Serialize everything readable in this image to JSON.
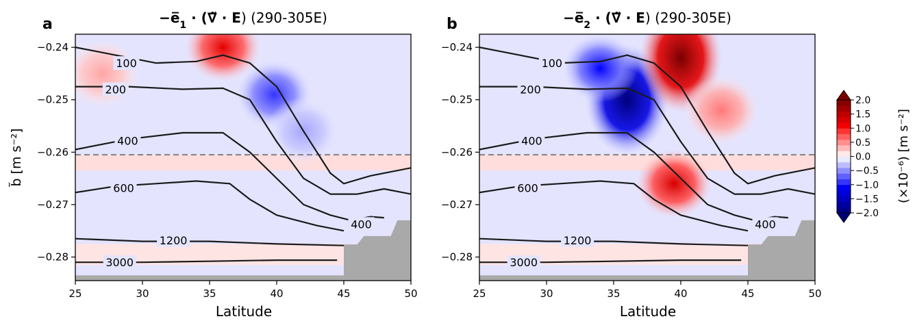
{
  "figure": {
    "shared_xlabel": "Latitude",
    "shared_ylabel": "b̃ [m s⁻²]",
    "colorbar_label": "(×10⁻⁶) [m s⁻²]"
  },
  "colors": {
    "contour": "#1a1a1a",
    "dashed_line": "#808080",
    "land": "#a9a9a9",
    "positive_strong": "#7a0000",
    "negative_strong": "#00007a"
  },
  "chart_data": [
    {
      "type": "heatmap",
      "panel_letter": "a",
      "title_parts": [
        "−",
        "e̅",
        "1",
        " · (",
        "∇̃",
        " · ",
        "E",
        ") (290-305E)"
      ],
      "xlabel": "Latitude",
      "ylabel": "b̃ [m s⁻²]",
      "xlim": [
        25,
        50
      ],
      "ylim": [
        -0.2845,
        -0.2375
      ],
      "xticks": [
        25,
        30,
        35,
        40,
        45,
        50
      ],
      "yticks": [
        -0.24,
        -0.25,
        -0.26,
        -0.27,
        -0.28
      ],
      "ytick_labels": [
        "−0.24",
        "−0.25",
        "−0.26",
        "−0.27",
        "−0.28"
      ],
      "dashed_reference_y": -0.2605,
      "color_scale": {
        "min": -2.0,
        "max": 2.0,
        "colormap": "seismic"
      },
      "features": [
        {
          "kind": "positive_max",
          "x": 36,
          "y": -0.24,
          "value": 1.2
        },
        {
          "kind": "positive",
          "x": 27,
          "y": -0.245,
          "value": 0.4
        },
        {
          "kind": "negative_min",
          "x": 39.8,
          "y": -0.249,
          "value": -0.9
        },
        {
          "kind": "negative",
          "x": 42,
          "y": -0.256,
          "value": -0.4
        }
      ],
      "contours": [
        {
          "label": "100",
          "points": [
            [
              25,
              -0.24
            ],
            [
              28,
              -0.2415
            ],
            [
              31,
              -0.243
            ],
            [
              34,
              -0.2427
            ],
            [
              36,
              -0.2415
            ],
            [
              38,
              -0.243
            ],
            [
              40,
              -0.2475
            ],
            [
              42,
              -0.256
            ],
            [
              44,
              -0.264
            ],
            [
              45,
              -0.266
            ],
            [
              47,
              -0.2645
            ],
            [
              50,
              -0.263
            ]
          ]
        },
        {
          "label": "200",
          "points": [
            [
              25,
              -0.2475
            ],
            [
              29,
              -0.2475
            ],
            [
              33,
              -0.248
            ],
            [
              36,
              -0.2478
            ],
            [
              38,
              -0.25
            ],
            [
              40,
              -0.258
            ],
            [
              42,
              -0.265
            ],
            [
              44,
              -0.268
            ],
            [
              46,
              -0.268
            ],
            [
              48,
              -0.267
            ],
            [
              50,
              -0.268
            ]
          ]
        },
        {
          "label": "400",
          "points": [
            [
              25,
              -0.2595
            ],
            [
              29,
              -0.2575
            ],
            [
              33,
              -0.2563
            ],
            [
              36,
              -0.2563
            ],
            [
              38,
              -0.26
            ],
            [
              40,
              -0.265
            ],
            [
              42,
              -0.27
            ],
            [
              44,
              -0.272
            ],
            [
              45.5,
              -0.273
            ],
            [
              47,
              -0.2723
            ],
            [
              48,
              -0.2725
            ]
          ]
        },
        {
          "label": "600",
          "points": [
            [
              25,
              -0.2677
            ],
            [
              28,
              -0.2665
            ],
            [
              31,
              -0.266
            ],
            [
              34,
              -0.2655
            ],
            [
              36.5,
              -0.266
            ],
            [
              38,
              -0.269
            ],
            [
              40,
              -0.272
            ],
            [
              43,
              -0.274
            ],
            [
              45,
              -0.275
            ]
          ]
        },
        {
          "label": "1200",
          "points": [
            [
              25,
              -0.2765
            ],
            [
              30,
              -0.277
            ],
            [
              35,
              -0.277
            ],
            [
              40,
              -0.2775
            ],
            [
              45,
              -0.2778
            ]
          ]
        },
        {
          "label": "3000",
          "points": [
            [
              25,
              -0.281
            ],
            [
              30,
              -0.281
            ],
            [
              35,
              -0.2808
            ],
            [
              40,
              -0.2806
            ],
            [
              44.5,
              -0.2806
            ]
          ]
        }
      ],
      "inline_labels": [
        {
          "text": "100",
          "x": 28.8,
          "y": -0.243
        },
        {
          "text": "200",
          "x": 28.0,
          "y": -0.248
        },
        {
          "text": "400",
          "x": 28.9,
          "y": -0.2578
        },
        {
          "text": "600",
          "x": 28.6,
          "y": -0.2668
        },
        {
          "text": "400",
          "x": 46.3,
          "y": -0.2737
        },
        {
          "text": "1200",
          "x": 32.3,
          "y": -0.2768
        },
        {
          "text": "3000",
          "x": 28.3,
          "y": -0.281
        }
      ]
    },
    {
      "type": "heatmap",
      "panel_letter": "b",
      "title_parts": [
        "−",
        "e̅",
        "2",
        " · (",
        "∇̃",
        " · ",
        "E",
        ") (290-305E)"
      ],
      "xlabel": "Latitude",
      "ylabel": "",
      "xlim": [
        25,
        50
      ],
      "ylim": [
        -0.2845,
        -0.2375
      ],
      "xticks": [
        25,
        30,
        35,
        40,
        45,
        50
      ],
      "yticks": [
        -0.24,
        -0.25,
        -0.26,
        -0.27,
        -0.28
      ],
      "ytick_labels": [
        "−0.24",
        "−0.25",
        "−0.26",
        "−0.27",
        "−0.28"
      ],
      "dashed_reference_y": -0.2605,
      "color_scale": {
        "min": -2.0,
        "max": 2.0,
        "colormap": "seismic"
      },
      "features": [
        {
          "kind": "negative_min",
          "x": 36,
          "y": -0.25,
          "value": -2.0
        },
        {
          "kind": "negative",
          "x": 34,
          "y": -0.244,
          "value": -1.0
        },
        {
          "kind": "positive_max",
          "x": 40,
          "y": -0.242,
          "value": 2.0
        },
        {
          "kind": "positive",
          "x": 39.5,
          "y": -0.266,
          "value": 1.3
        },
        {
          "kind": "positive",
          "x": 43,
          "y": -0.252,
          "value": 0.6
        }
      ],
      "contours": [
        {
          "label": "100",
          "points": [
            [
              25,
              -0.24
            ],
            [
              28,
              -0.2415
            ],
            [
              31,
              -0.243
            ],
            [
              34,
              -0.2427
            ],
            [
              36,
              -0.2415
            ],
            [
              38,
              -0.243
            ],
            [
              40,
              -0.2475
            ],
            [
              42,
              -0.256
            ],
            [
              44,
              -0.264
            ],
            [
              45,
              -0.266
            ],
            [
              47,
              -0.2645
            ],
            [
              50,
              -0.263
            ]
          ]
        },
        {
          "label": "200",
          "points": [
            [
              25,
              -0.2475
            ],
            [
              29,
              -0.2475
            ],
            [
              33,
              -0.248
            ],
            [
              36,
              -0.2478
            ],
            [
              38,
              -0.25
            ],
            [
              40,
              -0.258
            ],
            [
              42,
              -0.265
            ],
            [
              44,
              -0.268
            ],
            [
              46,
              -0.268
            ],
            [
              48,
              -0.267
            ],
            [
              50,
              -0.268
            ]
          ]
        },
        {
          "label": "400",
          "points": [
            [
              25,
              -0.2595
            ],
            [
              29,
              -0.2575
            ],
            [
              33,
              -0.2563
            ],
            [
              36,
              -0.2563
            ],
            [
              38,
              -0.26
            ],
            [
              40,
              -0.265
            ],
            [
              42,
              -0.27
            ],
            [
              44,
              -0.272
            ],
            [
              45.5,
              -0.273
            ],
            [
              47,
              -0.2723
            ],
            [
              48,
              -0.2725
            ]
          ]
        },
        {
          "label": "600",
          "points": [
            [
              25,
              -0.2677
            ],
            [
              28,
              -0.2665
            ],
            [
              31,
              -0.266
            ],
            [
              34,
              -0.2655
            ],
            [
              36.5,
              -0.266
            ],
            [
              38,
              -0.269
            ],
            [
              40,
              -0.272
            ],
            [
              43,
              -0.274
            ],
            [
              45,
              -0.275
            ]
          ]
        },
        {
          "label": "1200",
          "points": [
            [
              25,
              -0.2765
            ],
            [
              30,
              -0.277
            ],
            [
              35,
              -0.277
            ],
            [
              40,
              -0.2775
            ],
            [
              45,
              -0.2778
            ]
          ]
        },
        {
          "label": "3000",
          "points": [
            [
              25,
              -0.281
            ],
            [
              30,
              -0.281
            ],
            [
              35,
              -0.2808
            ],
            [
              40,
              -0.2806
            ],
            [
              44.5,
              -0.2806
            ]
          ]
        }
      ],
      "inline_labels": [
        {
          "text": "100",
          "x": 30.4,
          "y": -0.243
        },
        {
          "text": "200",
          "x": 28.8,
          "y": -0.248
        },
        {
          "text": "400",
          "x": 28.9,
          "y": -0.2578
        },
        {
          "text": "600",
          "x": 28.6,
          "y": -0.2668
        },
        {
          "text": "400",
          "x": 46.3,
          "y": -0.2737
        },
        {
          "text": "1200",
          "x": 32.3,
          "y": -0.2768
        },
        {
          "text": "3000",
          "x": 28.3,
          "y": -0.281
        }
      ]
    }
  ],
  "colorbar": {
    "range": [
      -2.0,
      2.0
    ],
    "tick_values": [
      2.0,
      1.5,
      1.0,
      0.5,
      0.0,
      -0.5,
      -1.0,
      -1.5,
      -2.0
    ],
    "tick_labels": [
      "2.0",
      "1.5",
      "1.0",
      "0.5",
      "0.0",
      "−0.5",
      "−1.0",
      "−1.5",
      "−2.0"
    ],
    "extend": "both"
  }
}
